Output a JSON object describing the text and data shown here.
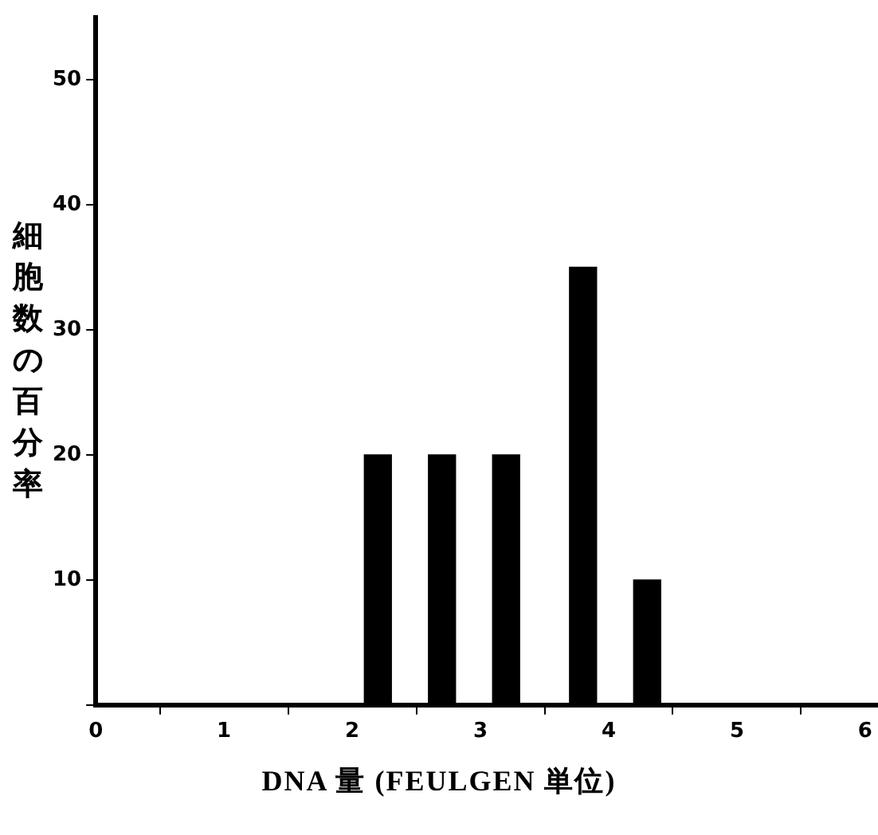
{
  "chart_data": {
    "type": "bar",
    "xlabel": "DNA 量 (FEULGEN 単位)",
    "ylabel": "細胞数の百分率",
    "x": [
      2.2,
      2.7,
      3.2,
      3.8,
      4.3
    ],
    "values": [
      20,
      20,
      20,
      35,
      10
    ],
    "color": "#000000",
    "xlim": [
      0,
      6.1
    ],
    "xticks": [
      0,
      1,
      2,
      3,
      4,
      5,
      6
    ],
    "ylim": [
      0,
      55
    ],
    "yticks": [
      {
        "value": 0,
        "label": null
      },
      10,
      20,
      30,
      40,
      50
    ],
    "grid": false,
    "legend": false
  }
}
